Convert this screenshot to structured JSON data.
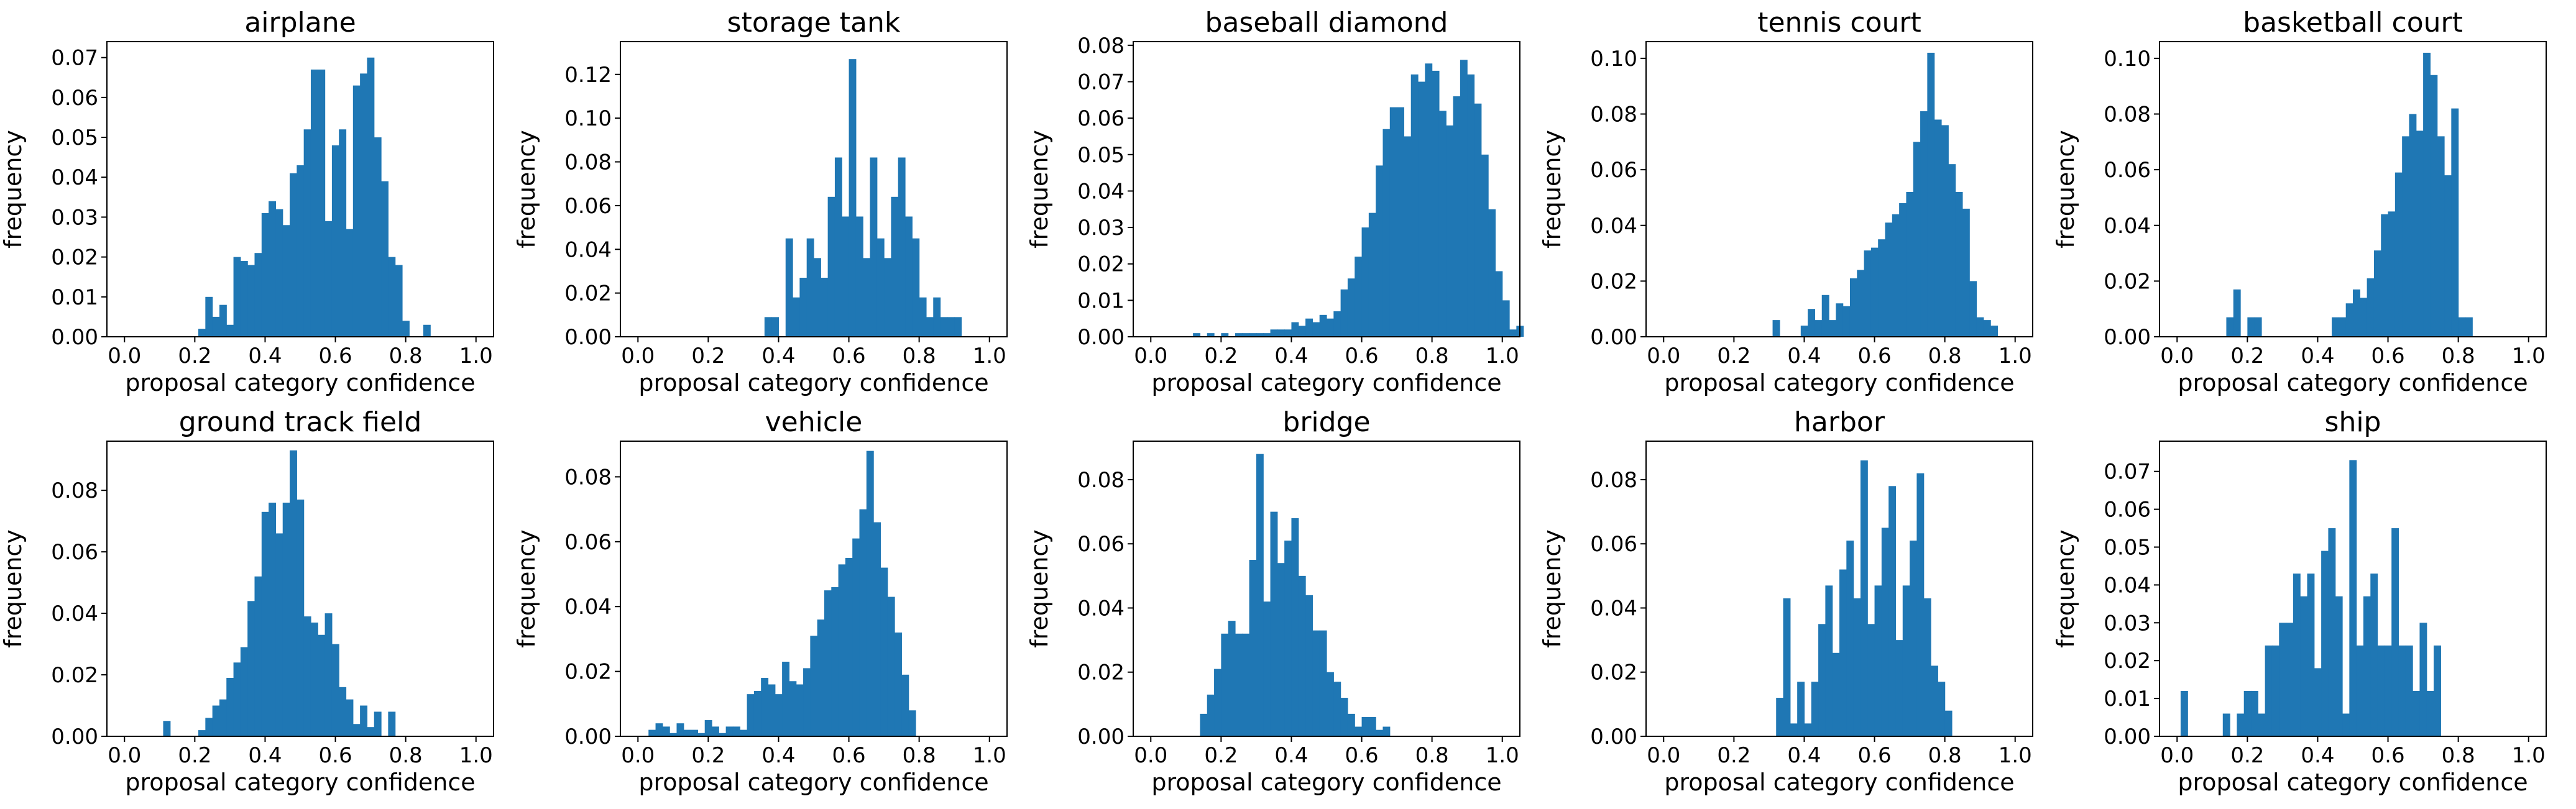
{
  "figure": {
    "bar_color": "#1f77b4",
    "background": "#ffffff"
  },
  "chart_data": [
    {
      "type": "bar",
      "title": "airplane",
      "xlabel": "proposal category confidence",
      "ylabel": "frequency",
      "xlim": [
        -0.05,
        1.05
      ],
      "ylim": [
        0,
        0.074
      ],
      "xticks": [
        "0.0",
        "0.2",
        "0.4",
        "0.6",
        "0.8",
        "1.0"
      ],
      "xtick_values": [
        0,
        0.2,
        0.4,
        0.6,
        0.8,
        1.0
      ],
      "yticks": [
        "0.00",
        "0.01",
        "0.02",
        "0.03",
        "0.04",
        "0.05",
        "0.06",
        "0.07"
      ],
      "ytick_values": [
        0,
        0.01,
        0.02,
        0.03,
        0.04,
        0.05,
        0.06,
        0.07
      ],
      "bin_start": 0.21,
      "bin_width": 0.02,
      "values": [
        0.002,
        0.01,
        0.005,
        0.008,
        0.003,
        0.02,
        0.019,
        0.018,
        0.021,
        0.031,
        0.034,
        0.032,
        0.028,
        0.041,
        0.043,
        0.052,
        0.067,
        0.067,
        0.029,
        0.048,
        0.052,
        0.027,
        0.063,
        0.066,
        0.07,
        0.05,
        0.039,
        0.02,
        0.018,
        0.004,
        0.0,
        0.0,
        0.003
      ]
    },
    {
      "type": "bar",
      "title": "storage tank",
      "xlabel": "proposal category confidence",
      "ylabel": "frequency",
      "xlim": [
        -0.05,
        1.05
      ],
      "ylim": [
        0,
        0.135
      ],
      "xticks": [
        "0.0",
        "0.2",
        "0.4",
        "0.6",
        "0.8",
        "1.0"
      ],
      "xtick_values": [
        0,
        0.2,
        0.4,
        0.6,
        0.8,
        1.0
      ],
      "yticks": [
        "0.00",
        "0.02",
        "0.04",
        "0.06",
        "0.08",
        "0.10",
        "0.12"
      ],
      "ytick_values": [
        0,
        0.02,
        0.04,
        0.06,
        0.08,
        0.1,
        0.12
      ],
      "bin_start": 0.36,
      "bin_width": 0.02,
      "values": [
        0.009,
        0.009,
        0.0,
        0.045,
        0.018,
        0.027,
        0.045,
        0.036,
        0.027,
        0.064,
        0.082,
        0.055,
        0.127,
        0.055,
        0.036,
        0.082,
        0.045,
        0.036,
        0.064,
        0.082,
        0.055,
        0.045,
        0.018,
        0.009,
        0.018,
        0.009,
        0.009,
        0.009
      ]
    },
    {
      "type": "bar",
      "title": "baseball diamond",
      "xlabel": "proposal category confidence",
      "ylabel": "frequency",
      "xlim": [
        -0.05,
        1.05
      ],
      "ylim": [
        0,
        0.081
      ],
      "xticks": [
        "0.0",
        "0.2",
        "0.4",
        "0.6",
        "0.8",
        "1.0"
      ],
      "xtick_values": [
        0,
        0.2,
        0.4,
        0.6,
        0.8,
        1.0
      ],
      "yticks": [
        "0.00",
        "0.01",
        "0.02",
        "0.03",
        "0.04",
        "0.05",
        "0.06",
        "0.07",
        "0.08"
      ],
      "ytick_values": [
        0,
        0.01,
        0.02,
        0.03,
        0.04,
        0.05,
        0.06,
        0.07,
        0.08
      ],
      "bin_start": 0.12,
      "bin_width": 0.02,
      "values": [
        0.001,
        0.0,
        0.001,
        0.0,
        0.001,
        0.0,
        0.001,
        0.001,
        0.001,
        0.001,
        0.001,
        0.002,
        0.002,
        0.002,
        0.004,
        0.003,
        0.005,
        0.004,
        0.006,
        0.005,
        0.007,
        0.013,
        0.016,
        0.022,
        0.03,
        0.034,
        0.047,
        0.057,
        0.063,
        0.063,
        0.055,
        0.072,
        0.07,
        0.075,
        0.073,
        0.062,
        0.058,
        0.066,
        0.076,
        0.072,
        0.064,
        0.05,
        0.035,
        0.018,
        0.01,
        0.002,
        0.003
      ]
    },
    {
      "type": "bar",
      "title": "tennis court",
      "xlabel": "proposal category confidence",
      "ylabel": "frequency",
      "xlim": [
        -0.05,
        1.05
      ],
      "ylim": [
        0,
        0.106
      ],
      "xticks": [
        "0.0",
        "0.2",
        "0.4",
        "0.6",
        "0.8",
        "1.0"
      ],
      "xtick_values": [
        0,
        0.2,
        0.4,
        0.6,
        0.8,
        1.0
      ],
      "yticks": [
        "0.00",
        "0.02",
        "0.04",
        "0.06",
        "0.08",
        "0.10"
      ],
      "ytick_values": [
        0,
        0.02,
        0.04,
        0.06,
        0.08,
        0.1
      ],
      "bin_start": 0.31,
      "bin_width": 0.02,
      "values": [
        0.006,
        0.0,
        0.0,
        0.0,
        0.004,
        0.01,
        0.006,
        0.015,
        0.006,
        0.012,
        0.011,
        0.021,
        0.024,
        0.031,
        0.032,
        0.035,
        0.041,
        0.044,
        0.048,
        0.052,
        0.07,
        0.081,
        0.102,
        0.078,
        0.076,
        0.062,
        0.052,
        0.046,
        0.02,
        0.007,
        0.006,
        0.004
      ]
    },
    {
      "type": "bar",
      "title": "basketball court",
      "xlabel": "proposal category confidence",
      "ylabel": "frequency",
      "xlim": [
        -0.05,
        1.05
      ],
      "ylim": [
        0,
        0.106
      ],
      "xticks": [
        "0.0",
        "0.2",
        "0.4",
        "0.6",
        "0.8",
        "1.0"
      ],
      "xtick_values": [
        0,
        0.2,
        0.4,
        0.6,
        0.8,
        1.0
      ],
      "yticks": [
        "0.00",
        "0.02",
        "0.04",
        "0.06",
        "0.08",
        "0.10"
      ],
      "ytick_values": [
        0,
        0.02,
        0.04,
        0.06,
        0.08,
        0.1
      ],
      "bin_start": 0.14,
      "bin_width": 0.02,
      "values": [
        0.007,
        0.017,
        0.0,
        0.007,
        0.007,
        0.0,
        0.0,
        0.0,
        0.0,
        0.0,
        0.0,
        0.0,
        0.0,
        0.0,
        0.0,
        0.007,
        0.007,
        0.012,
        0.017,
        0.014,
        0.021,
        0.031,
        0.044,
        0.045,
        0.059,
        0.072,
        0.08,
        0.074,
        0.102,
        0.094,
        0.072,
        0.058,
        0.082,
        0.007,
        0.007
      ]
    },
    {
      "type": "bar",
      "title": "ground track field",
      "xlabel": "proposal category confidence",
      "ylabel": "frequency",
      "xlim": [
        -0.05,
        1.05
      ],
      "ylim": [
        0,
        0.096
      ],
      "xticks": [
        "0.0",
        "0.2",
        "0.4",
        "0.6",
        "0.8",
        "1.0"
      ],
      "xtick_values": [
        0,
        0.2,
        0.4,
        0.6,
        0.8,
        1.0
      ],
      "yticks": [
        "0.00",
        "0.02",
        "0.04",
        "0.06",
        "0.08"
      ],
      "ytick_values": [
        0,
        0.02,
        0.04,
        0.06,
        0.08
      ],
      "bin_start": 0.11,
      "bin_width": 0.02,
      "values": [
        0.005,
        0.0,
        0.0,
        0.0,
        0.0,
        0.002,
        0.006,
        0.01,
        0.012,
        0.019,
        0.024,
        0.029,
        0.044,
        0.052,
        0.073,
        0.076,
        0.066,
        0.076,
        0.093,
        0.077,
        0.039,
        0.037,
        0.033,
        0.04,
        0.03,
        0.016,
        0.012,
        0.004,
        0.01,
        0.003,
        0.008,
        0.0,
        0.008
      ]
    },
    {
      "type": "bar",
      "title": "vehicle",
      "xlabel": "proposal category confidence",
      "ylabel": "frequency",
      "xlim": [
        -0.05,
        1.05
      ],
      "ylim": [
        0,
        0.091
      ],
      "xticks": [
        "0.0",
        "0.2",
        "0.4",
        "0.6",
        "0.8",
        "1.0"
      ],
      "xtick_values": [
        0,
        0.2,
        0.4,
        0.6,
        0.8,
        1.0
      ],
      "yticks": [
        "0.00",
        "0.02",
        "0.04",
        "0.06",
        "0.08"
      ],
      "ytick_values": [
        0,
        0.02,
        0.04,
        0.06,
        0.08
      ],
      "bin_start": 0.03,
      "bin_width": 0.02,
      "values": [
        0.002,
        0.004,
        0.003,
        0.001,
        0.004,
        0.002,
        0.002,
        0.001,
        0.005,
        0.003,
        0.001,
        0.003,
        0.003,
        0.002,
        0.013,
        0.014,
        0.018,
        0.016,
        0.013,
        0.023,
        0.017,
        0.016,
        0.021,
        0.031,
        0.036,
        0.045,
        0.046,
        0.053,
        0.055,
        0.061,
        0.07,
        0.088,
        0.066,
        0.052,
        0.043,
        0.032,
        0.019,
        0.008
      ]
    },
    {
      "type": "bar",
      "title": "bridge",
      "xlabel": "proposal category confidence",
      "ylabel": "frequency",
      "xlim": [
        -0.05,
        1.05
      ],
      "ylim": [
        0,
        0.092
      ],
      "xticks": [
        "0.0",
        "0.2",
        "0.4",
        "0.6",
        "0.8",
        "1.0"
      ],
      "xtick_values": [
        0,
        0.2,
        0.4,
        0.6,
        0.8,
        1.0
      ],
      "yticks": [
        "0.00",
        "0.02",
        "0.04",
        "0.06",
        "0.08"
      ],
      "ytick_values": [
        0,
        0.02,
        0.04,
        0.06,
        0.08
      ],
      "bin_start": 0.14,
      "bin_width": 0.02,
      "values": [
        0.007,
        0.013,
        0.021,
        0.032,
        0.036,
        0.032,
        0.032,
        0.055,
        0.088,
        0.042,
        0.07,
        0.054,
        0.061,
        0.068,
        0.05,
        0.044,
        0.033,
        0.033,
        0.02,
        0.017,
        0.012,
        0.007,
        0.003,
        0.006,
        0.006,
        0.002,
        0.003
      ]
    },
    {
      "type": "bar",
      "title": "harbor",
      "xlabel": "proposal category confidence",
      "ylabel": "frequency",
      "xlim": [
        -0.05,
        1.05
      ],
      "ylim": [
        0,
        0.092
      ],
      "xticks": [
        "0.0",
        "0.2",
        "0.4",
        "0.6",
        "0.8",
        "1.0"
      ],
      "xtick_values": [
        0,
        0.2,
        0.4,
        0.6,
        0.8,
        1.0
      ],
      "yticks": [
        "0.00",
        "0.02",
        "0.04",
        "0.06",
        "0.08"
      ],
      "ytick_values": [
        0,
        0.02,
        0.04,
        0.06,
        0.08
      ],
      "bin_start": 0.32,
      "bin_width": 0.02,
      "values": [
        0.012,
        0.043,
        0.004,
        0.017,
        0.004,
        0.017,
        0.035,
        0.047,
        0.026,
        0.052,
        0.061,
        0.043,
        0.086,
        0.035,
        0.047,
        0.065,
        0.078,
        0.03,
        0.047,
        0.061,
        0.082,
        0.043,
        0.022,
        0.017,
        0.008
      ]
    },
    {
      "type": "bar",
      "title": "ship",
      "xlabel": "proposal category confidence",
      "ylabel": "frequency",
      "xlim": [
        -0.05,
        1.05
      ],
      "ylim": [
        0,
        0.078
      ],
      "xticks": [
        "0.0",
        "0.2",
        "0.4",
        "0.6",
        "0.8",
        "1.0"
      ],
      "xtick_values": [
        0,
        0.2,
        0.4,
        0.6,
        0.8,
        1.0
      ],
      "yticks": [
        "0.00",
        "0.01",
        "0.02",
        "0.03",
        "0.04",
        "0.05",
        "0.06",
        "0.07"
      ],
      "ytick_values": [
        0,
        0.01,
        0.02,
        0.03,
        0.04,
        0.05,
        0.06,
        0.07
      ],
      "bin_start": 0.01,
      "bin_width": 0.02,
      "values": [
        0.012,
        0.0,
        0.0,
        0.0,
        0.0,
        0.0,
        0.006,
        0.0,
        0.006,
        0.012,
        0.012,
        0.006,
        0.024,
        0.024,
        0.03,
        0.03,
        0.043,
        0.037,
        0.043,
        0.018,
        0.049,
        0.055,
        0.037,
        0.006,
        0.073,
        0.024,
        0.037,
        0.043,
        0.024,
        0.024,
        0.055,
        0.024,
        0.024,
        0.012,
        0.03,
        0.012,
        0.024
      ]
    }
  ]
}
